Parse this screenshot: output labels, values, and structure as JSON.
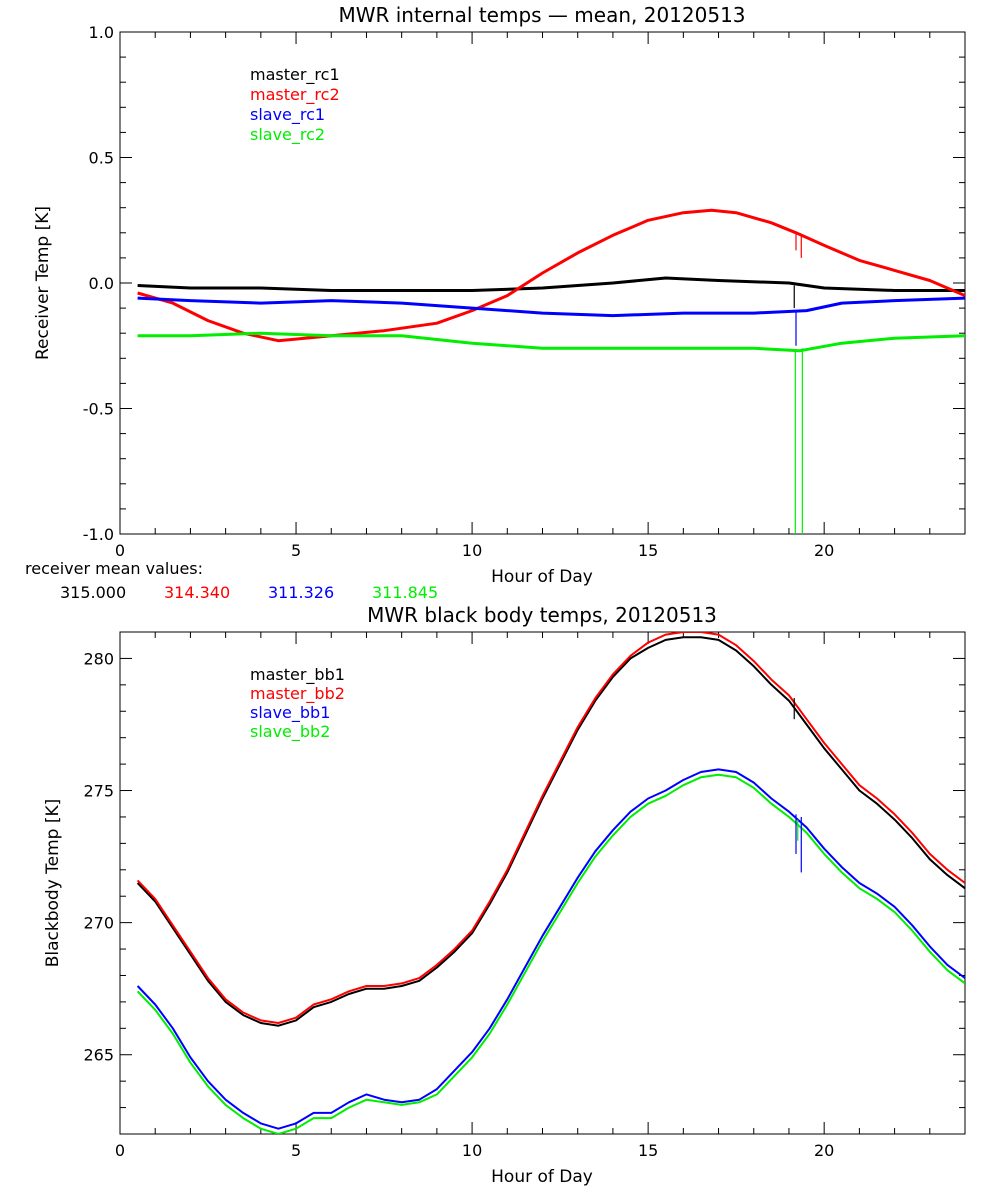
{
  "chart_data": [
    {
      "type": "line",
      "title": "MWR internal temps — mean, 20120513",
      "xlabel": "Hour of Day",
      "ylabel": "Receiver Temp [K]",
      "xlim": [
        0,
        24
      ],
      "ylim": [
        -1.0,
        1.0
      ],
      "xticks": [
        0,
        5,
        10,
        15,
        20
      ],
      "xtick_labels": [
        "0",
        "5",
        "10",
        "15",
        "20"
      ],
      "yticks": [
        -1.0,
        -0.5,
        0.0,
        0.5,
        1.0
      ],
      "ytick_labels": [
        "-1.0",
        "-0.5",
        "0.0",
        "0.5",
        "1.0"
      ],
      "grid": false,
      "legend_position": "top-left",
      "series": [
        {
          "name": "master_rc1",
          "color": "#000000",
          "x": [
            0.5,
            2,
            4,
            6,
            8,
            10,
            12,
            14,
            15.5,
            17,
            19,
            20,
            22,
            24
          ],
          "y": [
            -0.01,
            -0.02,
            -0.02,
            -0.03,
            -0.03,
            -0.03,
            -0.02,
            0.0,
            0.02,
            0.01,
            0.0,
            -0.02,
            -0.03,
            -0.03
          ]
        },
        {
          "name": "master_rc2",
          "color": "#ff0000",
          "x": [
            0.5,
            1.5,
            2.5,
            3.5,
            4.5,
            6,
            7.5,
            9,
            10,
            11,
            12,
            13,
            14,
            15,
            16,
            16.8,
            17.5,
            18.5,
            19.2,
            20,
            21,
            22,
            23,
            24
          ],
          "y": [
            -0.04,
            -0.08,
            -0.15,
            -0.2,
            -0.23,
            -0.21,
            -0.19,
            -0.16,
            -0.11,
            -0.05,
            0.04,
            0.12,
            0.19,
            0.25,
            0.28,
            0.29,
            0.28,
            0.24,
            0.2,
            0.15,
            0.09,
            0.05,
            0.01,
            -0.05
          ]
        },
        {
          "name": "slave_rc1",
          "color": "#0000ff",
          "x": [
            0.5,
            2,
            4,
            6,
            8,
            10,
            12,
            14,
            16,
            18,
            19.5,
            20.5,
            22,
            24
          ],
          "y": [
            -0.06,
            -0.07,
            -0.08,
            -0.07,
            -0.08,
            -0.1,
            -0.12,
            -0.13,
            -0.12,
            -0.12,
            -0.11,
            -0.08,
            -0.07,
            -0.06
          ]
        },
        {
          "name": "slave_rc2",
          "color": "#00ee00",
          "x": [
            0.5,
            2,
            4,
            6,
            8,
            10,
            12,
            14,
            16,
            18,
            19.3,
            20.5,
            22,
            24
          ],
          "y": [
            -0.21,
            -0.21,
            -0.2,
            -0.21,
            -0.21,
            -0.24,
            -0.26,
            -0.26,
            -0.26,
            -0.26,
            -0.27,
            -0.24,
            -0.22,
            -0.21
          ]
        }
      ],
      "spikes": [
        {
          "series": "master_rc1",
          "x": 19.15,
          "y1": -0.01,
          "y2": -0.1
        },
        {
          "series": "master_rc2",
          "x": 19.2,
          "y1": 0.2,
          "y2": 0.13
        },
        {
          "series": "master_rc2",
          "x": 19.35,
          "y1": 0.19,
          "y2": 0.1
        },
        {
          "series": "slave_rc1",
          "x": 19.2,
          "y1": -0.11,
          "y2": -0.25
        },
        {
          "series": "slave_rc2",
          "x": 19.18,
          "y1": -0.27,
          "y2": -1.0
        },
        {
          "series": "slave_rc2",
          "x": 19.38,
          "y1": -0.26,
          "y2": -1.0
        }
      ],
      "mean_values_label": "receiver mean values:",
      "mean_values": [
        {
          "text": "315.000",
          "color": "#000000"
        },
        {
          "text": "314.340",
          "color": "#ff0000"
        },
        {
          "text": "311.326",
          "color": "#0000ff"
        },
        {
          "text": "311.845",
          "color": "#00ee00"
        }
      ]
    },
    {
      "type": "line",
      "title": "MWR black body temps, 20120513",
      "xlabel": "Hour of Day",
      "ylabel": "Blackbody Temp [K]",
      "xlim": [
        0,
        24
      ],
      "ylim": [
        262,
        281
      ],
      "xticks": [
        0,
        5,
        10,
        15,
        20
      ],
      "xtick_labels": [
        "0",
        "5",
        "10",
        "15",
        "20"
      ],
      "yticks": [
        265,
        270,
        275,
        280
      ],
      "ytick_labels": [
        "265",
        "270",
        "275",
        "280"
      ],
      "grid": false,
      "legend_position": "top-left",
      "series": [
        {
          "name": "master_bb1",
          "color": "#000000",
          "x": [
            0.5,
            1,
            1.5,
            2,
            2.5,
            3,
            3.5,
            4,
            4.5,
            5,
            5.5,
            6,
            6.5,
            7,
            7.5,
            8,
            8.5,
            9,
            9.5,
            10,
            10.5,
            11,
            11.5,
            12,
            12.5,
            13,
            13.5,
            14,
            14.5,
            15,
            15.5,
            16,
            16.5,
            17,
            17.5,
            18,
            18.5,
            19,
            19.5,
            20,
            20.5,
            21,
            21.5,
            22,
            22.5,
            23,
            23.5,
            24
          ],
          "y": [
            271.5,
            270.8,
            269.8,
            268.8,
            267.8,
            267.0,
            266.5,
            266.2,
            266.1,
            266.3,
            266.8,
            267.0,
            267.3,
            267.5,
            267.5,
            267.6,
            267.8,
            268.3,
            268.9,
            269.6,
            270.7,
            271.9,
            273.3,
            274.7,
            276.0,
            277.3,
            278.4,
            279.3,
            280.0,
            280.4,
            280.7,
            280.8,
            280.8,
            280.7,
            280.3,
            279.7,
            279.0,
            278.4,
            277.5,
            276.6,
            275.8,
            275.0,
            274.5,
            273.9,
            273.2,
            272.4,
            271.8,
            271.3
          ]
        },
        {
          "name": "master_bb2",
          "color": "#ff0000",
          "x": [
            0.5,
            1,
            1.5,
            2,
            2.5,
            3,
            3.5,
            4,
            4.5,
            5,
            5.5,
            6,
            6.5,
            7,
            7.5,
            8,
            8.5,
            9,
            9.5,
            10,
            10.5,
            11,
            11.5,
            12,
            12.5,
            13,
            13.5,
            14,
            14.5,
            15,
            15.5,
            16,
            16.5,
            17,
            17.5,
            18,
            18.5,
            19,
            19.5,
            20,
            20.5,
            21,
            21.5,
            22,
            22.5,
            23,
            23.5,
            24
          ],
          "y": [
            271.6,
            270.9,
            269.9,
            268.9,
            267.9,
            267.1,
            266.6,
            266.3,
            266.2,
            266.4,
            266.9,
            267.1,
            267.4,
            267.6,
            267.6,
            267.7,
            267.9,
            268.4,
            269.0,
            269.7,
            270.8,
            272.0,
            273.4,
            274.8,
            276.1,
            277.4,
            278.5,
            279.4,
            280.1,
            280.6,
            280.9,
            281.0,
            281.0,
            280.9,
            280.5,
            279.9,
            279.2,
            278.6,
            277.7,
            276.8,
            276.0,
            275.2,
            274.7,
            274.1,
            273.4,
            272.6,
            272.0,
            271.5
          ]
        },
        {
          "name": "slave_bb1",
          "color": "#0000ff",
          "x": [
            0.5,
            1,
            1.5,
            2,
            2.5,
            3,
            3.5,
            4,
            4.5,
            5,
            5.5,
            6,
            6.5,
            7,
            7.5,
            8,
            8.5,
            9,
            9.5,
            10,
            10.5,
            11,
            11.5,
            12,
            12.5,
            13,
            13.5,
            14,
            14.5,
            15,
            15.5,
            16,
            16.5,
            17,
            17.5,
            18,
            18.5,
            19,
            19.5,
            20,
            20.5,
            21,
            21.5,
            22,
            22.5,
            23,
            23.5,
            24
          ],
          "y": [
            267.6,
            266.9,
            266.0,
            264.9,
            264.0,
            263.3,
            262.8,
            262.4,
            262.2,
            262.4,
            262.8,
            262.8,
            263.2,
            263.5,
            263.3,
            263.2,
            263.3,
            263.7,
            264.4,
            265.1,
            266.0,
            267.1,
            268.3,
            269.5,
            270.6,
            271.7,
            272.7,
            273.5,
            274.2,
            274.7,
            275.0,
            275.4,
            275.7,
            275.8,
            275.7,
            275.3,
            274.7,
            274.2,
            273.6,
            272.8,
            272.1,
            271.5,
            271.1,
            270.6,
            269.9,
            269.1,
            268.4,
            267.9
          ]
        },
        {
          "name": "slave_bb2",
          "color": "#00ee00",
          "x": [
            0.5,
            1,
            1.5,
            2,
            2.5,
            3,
            3.5,
            4,
            4.5,
            5,
            5.5,
            6,
            6.5,
            7,
            7.5,
            8,
            8.5,
            9,
            9.5,
            10,
            10.5,
            11,
            11.5,
            12,
            12.5,
            13,
            13.5,
            14,
            14.5,
            15,
            15.5,
            16,
            16.5,
            17,
            17.5,
            18,
            18.5,
            19,
            19.5,
            20,
            20.5,
            21,
            21.5,
            22,
            22.5,
            23,
            23.5,
            24
          ],
          "y": [
            267.4,
            266.7,
            265.8,
            264.7,
            263.8,
            263.1,
            262.6,
            262.2,
            262.0,
            262.2,
            262.6,
            262.6,
            263.0,
            263.3,
            263.2,
            263.1,
            263.2,
            263.5,
            264.2,
            264.9,
            265.8,
            266.9,
            268.1,
            269.3,
            270.4,
            271.5,
            272.5,
            273.3,
            274.0,
            274.5,
            274.8,
            275.2,
            275.5,
            275.6,
            275.5,
            275.1,
            274.5,
            274.0,
            273.4,
            272.6,
            271.9,
            271.3,
            270.9,
            270.4,
            269.7,
            268.9,
            268.2,
            267.7
          ]
        }
      ],
      "spikes": [
        {
          "series": "master_bb1",
          "x": 19.15,
          "y1": 278.5,
          "y2": 277.7
        },
        {
          "series": "slave_bb1",
          "x": 19.2,
          "y1": 274.1,
          "y2": 272.6
        },
        {
          "series": "slave_bb1",
          "x": 19.35,
          "y1": 274.0,
          "y2": 271.9
        },
        {
          "series": "slave_bb2",
          "x": 19.25,
          "y1": 273.9,
          "y2": 273.1
        }
      ]
    }
  ]
}
